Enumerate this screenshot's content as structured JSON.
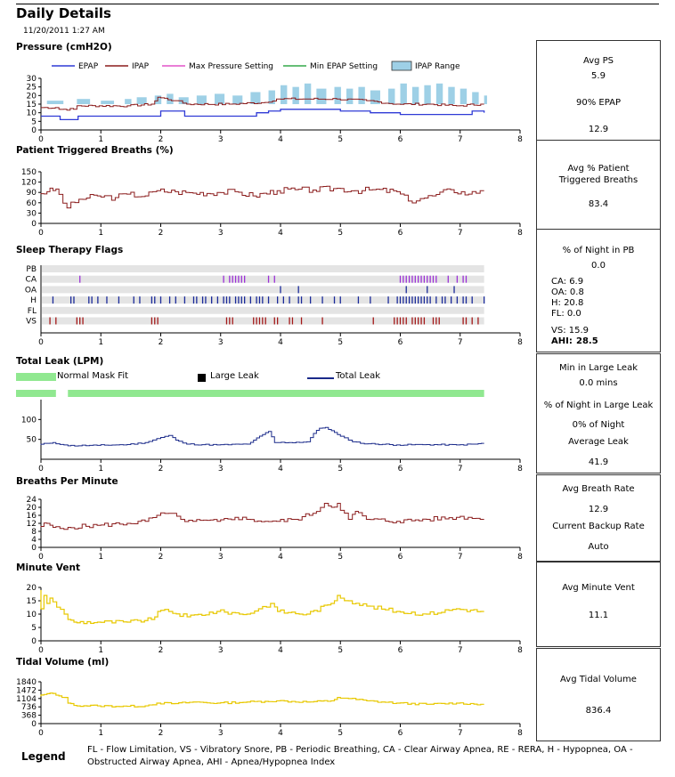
{
  "header": {
    "title": "Daily Details",
    "datetime": "11/20/2011 1:27 AM"
  },
  "colors": {
    "epap": "#2f3ad6",
    "ipap": "#8b1c1c",
    "max_pressure": "#e254c8",
    "min_epap": "#33a84a",
    "ipap_range": "#9ed0e6",
    "patient_triggered": "#8b1c1c",
    "flag_ca": "#9b30d6",
    "flag_oa": "#1a2a9a",
    "flag_h": "#1a2a9a",
    "flag_vs": "#a31818",
    "leak_normal": "#90e890",
    "leak_large": "#000000",
    "total_leak": "#1a2a8a",
    "bpm": "#8b1c1c",
    "minute_vent": "#e8c800",
    "tidal_volume": "#e8c800"
  },
  "chart_data": [
    {
      "id": "pressure",
      "type": "line",
      "title": "Pressure (cmH2O)",
      "xlim": [
        0,
        8
      ],
      "xticks": [
        0,
        1,
        2,
        3,
        4,
        5,
        6,
        7,
        8
      ],
      "ylim": [
        0,
        30
      ],
      "yticks": [
        0,
        5,
        10,
        15,
        20,
        25,
        30
      ],
      "legend": [
        "EPAP",
        "IPAP",
        "Max Pressure Setting",
        "Min EPAP Setting",
        "IPAP Range"
      ],
      "series": [
        {
          "name": "EPAP",
          "x": [
            0,
            0.3,
            0.32,
            0.6,
            0.62,
            1.9,
            2.0,
            2.1,
            2.4,
            2.5,
            3.4,
            3.6,
            3.8,
            4.0,
            4.5,
            5.0,
            5.5,
            6.0,
            6.5,
            7.0,
            7.2,
            7.4
          ],
          "y": [
            8,
            8,
            6,
            6,
            8,
            8,
            11,
            11,
            8,
            8,
            8,
            10,
            11,
            12,
            12,
            11,
            10,
            9,
            9,
            9,
            11,
            10
          ]
        },
        {
          "name": "IPAP",
          "x": [
            0,
            0.3,
            0.32,
            0.6,
            0.62,
            1.5,
            1.9,
            2.0,
            2.3,
            2.5,
            3.2,
            3.8,
            4.0,
            4.5,
            5.0,
            5.5,
            6.0,
            6.5,
            7.0,
            7.4
          ],
          "y": [
            13,
            13,
            12,
            12,
            14,
            14,
            15,
            19,
            17,
            15,
            15,
            16,
            18,
            18,
            18,
            17,
            15,
            15,
            14,
            15
          ]
        },
        {
          "name": "IPAP Range",
          "x": [
            0.1,
            0.6,
            1.0,
            1.4,
            1.6,
            1.9,
            2.1,
            2.3,
            2.6,
            2.9,
            3.2,
            3.5,
            3.8,
            4.0,
            4.2,
            4.4,
            4.6,
            4.9,
            5.1,
            5.3,
            5.5,
            5.8,
            6.0,
            6.2,
            6.4,
            6.6,
            6.8,
            7.0,
            7.2,
            7.4
          ],
          "y": [
            17,
            18,
            17,
            18,
            19,
            20,
            21,
            19,
            20,
            21,
            20,
            22,
            23,
            26,
            25,
            27,
            24,
            25,
            24,
            25,
            23,
            24,
            27,
            25,
            26,
            27,
            25,
            24,
            22,
            20
          ]
        }
      ]
    },
    {
      "id": "patient_triggered",
      "type": "line",
      "title": "Patient Triggered Breaths (%)",
      "xlim": [
        0,
        8
      ],
      "xticks": [
        0,
        1,
        2,
        3,
        4,
        5,
        6,
        7,
        8
      ],
      "ylim": [
        0,
        150
      ],
      "yticks": [
        0,
        30,
        60,
        90,
        120,
        150
      ],
      "series": [
        {
          "name": "Patient Triggered Breaths",
          "x": [
            0,
            0.15,
            0.3,
            0.5,
            0.7,
            1.0,
            1.3,
            1.5,
            1.8,
            2.0,
            2.3,
            2.6,
            3.0,
            3.3,
            3.6,
            4.0,
            4.3,
            4.6,
            5.0,
            5.3,
            5.6,
            6.0,
            6.2,
            6.4,
            6.6,
            6.9,
            7.2,
            7.4
          ],
          "y": [
            88,
            92,
            100,
            45,
            70,
            80,
            75,
            85,
            80,
            95,
            92,
            88,
            90,
            92,
            80,
            95,
            98,
            97,
            102,
            95,
            98,
            92,
            65,
            72,
            80,
            98,
            85,
            95
          ]
        }
      ]
    },
    {
      "id": "flags",
      "type": "scatter",
      "title": "Sleep Therapy Flags",
      "xlim": [
        0,
        8
      ],
      "xticks": [
        0,
        1,
        2,
        3,
        4,
        5,
        6,
        7,
        8
      ],
      "categories": [
        "PB",
        "CA",
        "OA",
        "H",
        "FL",
        "VS"
      ],
      "events": {
        "CA": [
          0.65,
          3.05,
          3.15,
          3.2,
          3.25,
          3.3,
          3.35,
          3.4,
          3.8,
          3.9,
          6.0,
          6.05,
          6.1,
          6.15,
          6.2,
          6.25,
          6.3,
          6.35,
          6.4,
          6.45,
          6.5,
          6.55,
          6.6,
          6.8,
          6.95,
          7.05,
          7.1
        ],
        "OA": [
          4.0,
          4.3,
          6.1,
          6.45,
          6.9
        ],
        "H": [
          0.2,
          0.5,
          0.55,
          0.8,
          0.85,
          0.95,
          1.1,
          1.3,
          1.55,
          1.65,
          1.85,
          1.9,
          2.0,
          2.15,
          2.25,
          2.4,
          2.55,
          2.6,
          2.7,
          2.75,
          2.85,
          2.95,
          3.05,
          3.1,
          3.15,
          3.25,
          3.3,
          3.35,
          3.4,
          3.5,
          3.6,
          3.65,
          3.7,
          3.8,
          3.95,
          4.05,
          4.15,
          4.3,
          4.35,
          4.5,
          4.7,
          4.9,
          5.0,
          5.3,
          5.5,
          5.8,
          5.95,
          6.0,
          6.05,
          6.1,
          6.15,
          6.2,
          6.25,
          6.3,
          6.35,
          6.4,
          6.45,
          6.5,
          6.6,
          6.7,
          6.75,
          6.85,
          6.95,
          7.05,
          7.1,
          7.2,
          7.4
        ],
        "VS": [
          0.15,
          0.25,
          0.6,
          0.65,
          0.7,
          1.85,
          1.9,
          1.95,
          3.1,
          3.15,
          3.2,
          3.55,
          3.6,
          3.65,
          3.7,
          3.75,
          3.9,
          3.95,
          4.15,
          4.2,
          4.35,
          4.7,
          5.55,
          5.9,
          5.95,
          6.0,
          6.05,
          6.1,
          6.2,
          6.25,
          6.3,
          6.35,
          6.4,
          6.55,
          6.6,
          6.65,
          7.05,
          7.1,
          7.2,
          7.3
        ]
      }
    },
    {
      "id": "total_leak",
      "type": "line",
      "title": "Total Leak (LPM)",
      "xlim": [
        0,
        8
      ],
      "xticks": [
        0,
        1,
        2,
        3,
        4,
        5,
        6,
        7,
        8
      ],
      "ylim": [
        0,
        150
      ],
      "yticks": [
        50,
        100
      ],
      "legend": [
        "Normal Mask Fit",
        "Large Leak",
        "Total Leak"
      ],
      "normal_mask_fit": [
        [
          0,
          0.25
        ],
        [
          0.45,
          7.4
        ]
      ],
      "series": [
        {
          "name": "Total Leak",
          "x": [
            0,
            0.15,
            0.25,
            0.45,
            0.5,
            1.0,
            1.5,
            1.8,
            2.0,
            2.2,
            2.3,
            2.5,
            3.0,
            3.5,
            3.6,
            3.75,
            3.85,
            3.95,
            4.2,
            4.5,
            4.6,
            4.7,
            4.8,
            4.9,
            5.0,
            5.2,
            5.4,
            6.0,
            6.5,
            7.0,
            7.3,
            7.4
          ],
          "y": [
            36,
            40,
            42,
            36,
            34,
            35,
            37,
            42,
            52,
            60,
            48,
            38,
            36,
            38,
            48,
            62,
            70,
            42,
            42,
            44,
            65,
            78,
            80,
            72,
            62,
            48,
            40,
            36,
            37,
            36,
            38,
            40
          ]
        }
      ]
    },
    {
      "id": "bpm",
      "type": "line",
      "title": "Breaths Per Minute",
      "xlim": [
        0,
        8
      ],
      "xticks": [
        0,
        1,
        2,
        3,
        4,
        5,
        6,
        7,
        8
      ],
      "ylim": [
        0,
        24
      ],
      "yticks": [
        0,
        4,
        8,
        12,
        16,
        20,
        24
      ],
      "series": [
        {
          "name": "Breaths Per Minute",
          "x": [
            0,
            0.15,
            0.25,
            0.45,
            0.5,
            1.0,
            1.5,
            1.8,
            2.0,
            2.2,
            2.4,
            2.6,
            3.0,
            3.3,
            3.5,
            3.8,
            4.0,
            4.3,
            4.6,
            4.8,
            4.9,
            5.0,
            5.2,
            5.3,
            5.5,
            6.0,
            6.5,
            7.0,
            7.2,
            7.4
          ],
          "y": [
            10,
            12,
            10,
            9,
            10,
            11,
            12,
            13,
            16,
            17,
            14,
            13,
            13,
            15,
            14,
            13,
            13,
            14,
            17,
            22,
            20,
            22,
            14,
            18,
            14,
            13,
            14,
            15,
            15,
            14
          ]
        }
      ]
    },
    {
      "id": "minute_vent",
      "type": "line",
      "title": "Minute Vent",
      "xlim": [
        0,
        8
      ],
      "xticks": [
        0,
        1,
        2,
        3,
        4,
        5,
        6,
        7,
        8
      ],
      "ylim": [
        0,
        20
      ],
      "yticks": [
        0,
        5,
        10,
        15,
        20
      ],
      "series": [
        {
          "name": "Minute Vent",
          "x": [
            0,
            0.05,
            0.1,
            0.15,
            0.2,
            0.45,
            0.5,
            0.6,
            1.0,
            1.5,
            1.9,
            2.0,
            2.2,
            2.5,
            3.0,
            3.5,
            3.7,
            3.9,
            4.0,
            4.5,
            4.9,
            5.0,
            5.2,
            5.5,
            6.0,
            6.5,
            7.0,
            7.4
          ],
          "y": [
            19,
            12,
            17,
            14,
            16,
            10,
            8,
            7,
            7,
            7,
            8,
            11,
            11,
            9,
            11,
            10,
            12,
            14,
            11,
            10,
            14,
            17,
            15,
            13,
            11,
            10,
            12,
            11
          ]
        }
      ]
    },
    {
      "id": "tidal_volume",
      "type": "line",
      "title": "Tidal Volume (ml)",
      "xlim": [
        0,
        8
      ],
      "xticks": [
        0,
        1,
        2,
        3,
        4,
        5,
        6,
        7,
        8
      ],
      "ylim": [
        0,
        1840
      ],
      "yticks": [
        0,
        368,
        736,
        1104,
        1472,
        1840
      ],
      "ytick_labels": [
        "0",
        "368",
        "736",
        "1104",
        "1472",
        "1840"
      ],
      "series": [
        {
          "name": "Tidal Volume",
          "x": [
            0,
            0.1,
            0.2,
            0.3,
            0.45,
            0.5,
            0.6,
            1.0,
            1.5,
            1.8,
            2.0,
            2.3,
            2.6,
            3.0,
            3.5,
            3.8,
            4.0,
            4.5,
            4.9,
            5.0,
            5.2,
            5.5,
            6.0,
            6.5,
            7.0,
            7.4
          ],
          "y": [
            1200,
            1280,
            1340,
            1250,
            1150,
            900,
            800,
            780,
            760,
            780,
            900,
            880,
            950,
            900,
            950,
            980,
            1000,
            950,
            1000,
            1150,
            1100,
            1000,
            900,
            850,
            900,
            850
          ]
        }
      ]
    }
  ],
  "panels": {
    "pressure": {
      "avg_ps_label": "Avg PS",
      "avg_ps": "5.9",
      "epap90_label": "90% EPAP",
      "epap90": "12.9"
    },
    "patient_triggered": {
      "label": "Avg % Patient Triggered Breaths",
      "value": "83.4"
    },
    "flags": {
      "pb_label": "% of Night in PB",
      "pb": "0.0",
      "ca": "CA:  6.9",
      "oa": "OA:  0.8",
      "h": "H:    20.8",
      "fl": "FL:   0.0",
      "vs": "VS:  15.9",
      "ahi_label": "AHI:",
      "ahi": "28.5"
    },
    "leak": {
      "min_large_label": "Min in Large Leak",
      "min_large": "0.0 mins",
      "pct_large_label": "% of Night in Large Leak",
      "pct_large": "0% of Night",
      "avg_label": "Average Leak",
      "avg": "41.9"
    },
    "bpm": {
      "avg_label": "Avg Breath Rate",
      "avg": "12.9",
      "backup_label": "Current Backup Rate",
      "backup": "Auto"
    },
    "minute_vent": {
      "label": "Avg Minute Vent",
      "value": "11.1"
    },
    "tidal_volume": {
      "label": "Avg Tidal Volume",
      "value": "836.4"
    }
  },
  "legend": {
    "title": "Legend",
    "text": "FL - Flow Limitation, VS - Vibratory Snore, PB - Periodic Breathing, CA - Clear Airway Apnea, RE - RERA, H - Hypopnea, OA - Obstructed Airway Apnea, AHI - Apnea/Hypopnea Index"
  }
}
